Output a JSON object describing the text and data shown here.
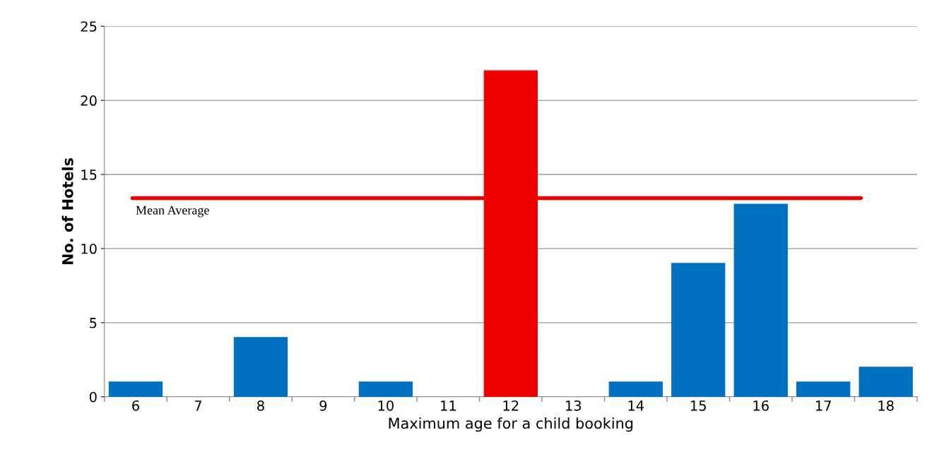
{
  "chart_data": {
    "type": "bar",
    "xlabel": "Maximum age for a child booking",
    "ylabel": "No. of Hotels",
    "categories": [
      "6",
      "7",
      "8",
      "9",
      "10",
      "11",
      "12",
      "13",
      "14",
      "15",
      "16",
      "17",
      "18"
    ],
    "values": [
      1,
      0,
      4,
      0,
      1,
      0,
      22,
      0,
      1,
      9,
      13,
      1,
      2
    ],
    "colors": [
      "#0070c0",
      "#0070c0",
      "#0070c0",
      "#0070c0",
      "#0070c0",
      "#0070c0",
      "#ee0000",
      "#0070c0",
      "#0070c0",
      "#0070c0",
      "#0070c0",
      "#0070c0",
      "#0070c0"
    ],
    "ylim": [
      0,
      25
    ],
    "yticks": [
      0,
      5,
      10,
      15,
      20,
      25
    ],
    "grid": "y",
    "ref_lines": [
      {
        "axis": "y",
        "value": 13.4,
        "label": "Mean Average",
        "color": "#ee0000",
        "line_style": "solid"
      }
    ]
  }
}
